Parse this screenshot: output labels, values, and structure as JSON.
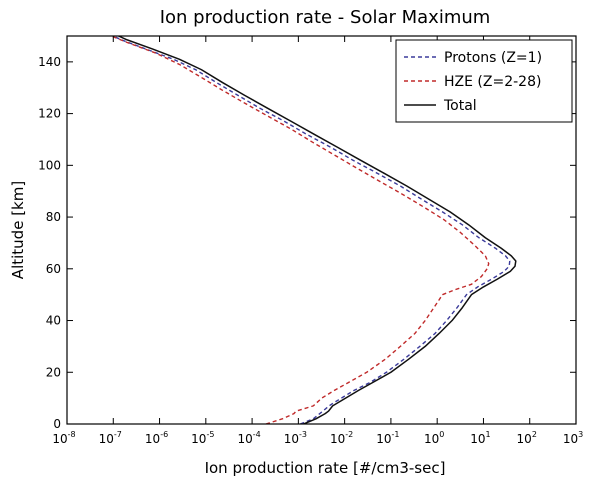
{
  "chart_data": {
    "type": "line",
    "title": "Ion production rate - Solar Maximum",
    "xlabel": "Ion production rate [#/cm3-sec]",
    "ylabel": "Altitude [km]",
    "xscale": "log",
    "xlim": [
      1e-08,
      1000
    ],
    "ylim": [
      0,
      150
    ],
    "x_ticks": [
      {
        "base": "10",
        "exp": "-8"
      },
      {
        "base": "10",
        "exp": "-7"
      },
      {
        "base": "10",
        "exp": "-6"
      },
      {
        "base": "10",
        "exp": "-5"
      },
      {
        "base": "10",
        "exp": "-4"
      },
      {
        "base": "10",
        "exp": "-3"
      },
      {
        "base": "10",
        "exp": "-2"
      },
      {
        "base": "10",
        "exp": "-1"
      },
      {
        "base": "10",
        "exp": "0"
      },
      {
        "base": "10",
        "exp": "1"
      },
      {
        "base": "10",
        "exp": "2"
      },
      {
        "base": "10",
        "exp": "3"
      }
    ],
    "y_ticks": [
      "0",
      "20",
      "40",
      "60",
      "80",
      "100",
      "120",
      "140"
    ],
    "legend_position": "top-right",
    "grid": false,
    "series": [
      {
        "name": "Protons (Z=1)",
        "color": "#3b3b9b",
        "style": "dashed",
        "points": [
          [
            0.0011,
            0
          ],
          [
            0.0021,
            2
          ],
          [
            0.0034,
            5
          ],
          [
            0.0046,
            7
          ],
          [
            0.0056,
            8
          ],
          [
            0.0085,
            10
          ],
          [
            0.016,
            13
          ],
          [
            0.035,
            16
          ],
          [
            0.08,
            20
          ],
          [
            0.19,
            25
          ],
          [
            0.42,
            30
          ],
          [
            0.9,
            35
          ],
          [
            1.6,
            40
          ],
          [
            2.7,
            45
          ],
          [
            4.3,
            50
          ],
          [
            7.5,
            53
          ],
          [
            15,
            56
          ],
          [
            28,
            59
          ],
          [
            36,
            61
          ],
          [
            37,
            63
          ],
          [
            30,
            65
          ],
          [
            18,
            68
          ],
          [
            8,
            72
          ],
          [
            3.5,
            77
          ],
          [
            1.3,
            82
          ],
          [
            0.45,
            87
          ],
          [
            0.16,
            92
          ],
          [
            0.05,
            97
          ],
          [
            0.015,
            102
          ],
          [
            0.005,
            107
          ],
          [
            0.0015,
            112
          ],
          [
            0.0005,
            117
          ],
          [
            0.00015,
            122
          ],
          [
            5e-05,
            127
          ],
          [
            1.7e-05,
            132
          ],
          [
            6e-06,
            137
          ],
          [
            2e-06,
            141
          ],
          [
            5e-07,
            145
          ],
          [
            1.5e-07,
            148.5
          ],
          [
            1e-07,
            150
          ]
        ]
      },
      {
        "name": "HZE (Z=2-28)",
        "color": "#c02a2a",
        "style": "dashed",
        "points": [
          [
            0.0002,
            0
          ],
          [
            0.00045,
            2
          ],
          [
            0.0008,
            4
          ],
          [
            0.0009,
            5
          ],
          [
            0.0021,
            7
          ],
          [
            0.0032,
            10
          ],
          [
            0.006,
            13
          ],
          [
            0.012,
            16
          ],
          [
            0.03,
            20
          ],
          [
            0.075,
            25
          ],
          [
            0.16,
            30
          ],
          [
            0.33,
            35
          ],
          [
            0.55,
            40
          ],
          [
            0.85,
            45
          ],
          [
            1.1,
            48
          ],
          [
            1.3,
            50
          ],
          [
            2.5,
            52
          ],
          [
            5.5,
            54
          ],
          [
            9,
            57
          ],
          [
            12,
            60
          ],
          [
            13,
            62
          ],
          [
            11,
            65
          ],
          [
            6.5,
            69
          ],
          [
            3.2,
            74
          ],
          [
            1.4,
            79
          ],
          [
            0.5,
            84
          ],
          [
            0.17,
            89
          ],
          [
            0.055,
            94
          ],
          [
            0.018,
            99
          ],
          [
            0.006,
            104
          ],
          [
            0.002,
            109
          ],
          [
            0.0007,
            114
          ],
          [
            0.00022,
            119
          ],
          [
            7e-05,
            124
          ],
          [
            2.3e-05,
            129
          ],
          [
            8e-06,
            134
          ],
          [
            2.7e-06,
            139
          ],
          [
            8e-07,
            143.5
          ],
          [
            2e-07,
            147.5
          ],
          [
            9e-08,
            150
          ]
        ]
      },
      {
        "name": "Total",
        "color": "#111111",
        "style": "solid",
        "points": [
          [
            0.0013,
            0
          ],
          [
            0.0024,
            2
          ],
          [
            0.0038,
            4
          ],
          [
            0.0045,
            5
          ],
          [
            0.0055,
            7
          ],
          [
            0.0105,
            10
          ],
          [
            0.02,
            13
          ],
          [
            0.04,
            16
          ],
          [
            0.1,
            20
          ],
          [
            0.24,
            25
          ],
          [
            0.55,
            30
          ],
          [
            1.1,
            35
          ],
          [
            2.1,
            40
          ],
          [
            3.5,
            45
          ],
          [
            5.5,
            50
          ],
          [
            10,
            53
          ],
          [
            20,
            56
          ],
          [
            38,
            59
          ],
          [
            48,
            61
          ],
          [
            50,
            63
          ],
          [
            40,
            65
          ],
          [
            24,
            68
          ],
          [
            11,
            72
          ],
          [
            4.8,
            77
          ],
          [
            1.9,
            82
          ],
          [
            0.65,
            87
          ],
          [
            0.22,
            92
          ],
          [
            0.07,
            97
          ],
          [
            0.022,
            102
          ],
          [
            0.007,
            107
          ],
          [
            0.0022,
            112
          ],
          [
            0.0007,
            117
          ],
          [
            0.00022,
            122
          ],
          [
            7e-05,
            127
          ],
          [
            2.3e-05,
            132
          ],
          [
            8e-06,
            137
          ],
          [
            2.7e-06,
            141
          ],
          [
            7e-07,
            145
          ],
          [
            2e-07,
            148.5
          ],
          [
            1.3e-07,
            150
          ]
        ]
      }
    ]
  }
}
